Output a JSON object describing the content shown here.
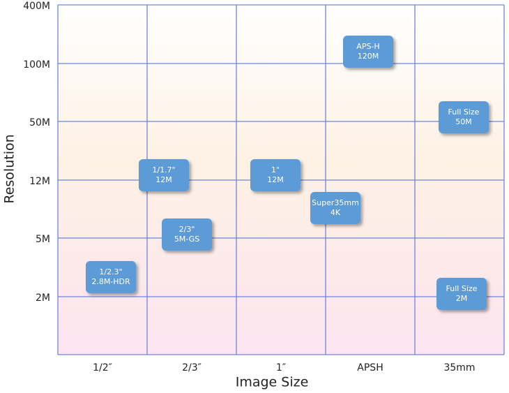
{
  "x_axis": {
    "title": "Image Size",
    "categories": [
      "1/2″",
      "2/3″",
      "1″",
      "APSH",
      "35mm"
    ]
  },
  "y_axis": {
    "title": "Resolution",
    "categories": [
      "400M",
      "100M",
      "50M",
      "12M",
      "5M",
      "2M"
    ]
  },
  "nodes": [
    {
      "lines": [
        "APS-H",
        "120M"
      ]
    },
    {
      "lines": [
        "Full Size",
        "50M"
      ]
    },
    {
      "lines": [
        "1/1.7\"",
        "12M"
      ]
    },
    {
      "lines": [
        "1\"",
        "12M"
      ]
    },
    {
      "lines": [
        "Super35mm",
        "4K"
      ]
    },
    {
      "lines": [
        "2/3\"",
        "5M-GS"
      ]
    },
    {
      "lines": [
        "1/2.3\"",
        "2.8M-HDR"
      ]
    },
    {
      "lines": [
        "Full Size",
        "2M"
      ]
    }
  ]
}
